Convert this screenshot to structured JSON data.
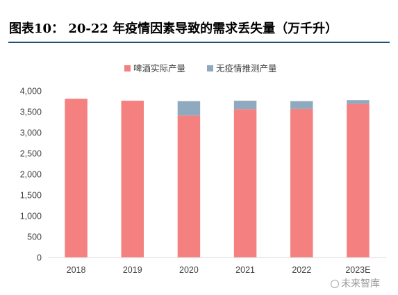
{
  "header": {
    "title": "图表10：   20-22 年疫情因素导致的需求丢失量（万千升）"
  },
  "colors": {
    "rule": "#1f4e79",
    "actual": "#f58080",
    "lost": "#8faabf",
    "axis": "#d9d9d9"
  },
  "chart_data": {
    "type": "bar",
    "stacked": true,
    "categories": [
      "2018",
      "2019",
      "2020",
      "2021",
      "2022",
      "2023E"
    ],
    "series": [
      {
        "name": "啤酒实际产量",
        "values": [
          3812,
          3765,
          3411,
          3562,
          3569,
          3690
        ]
      },
      {
        "name": "无疫情推测产量",
        "values": [
          0,
          0,
          343,
          203,
          185,
          90
        ]
      }
    ],
    "ylim": [
      0,
      4000
    ],
    "yticks": [
      "0",
      "500",
      "1,000",
      "1,500",
      "2,000",
      "2,500",
      "3,000",
      "3,500",
      "4,000"
    ],
    "grid": false,
    "legend": "top-center"
  },
  "watermark": {
    "icon": "ring-icon",
    "text": "未来智库"
  }
}
